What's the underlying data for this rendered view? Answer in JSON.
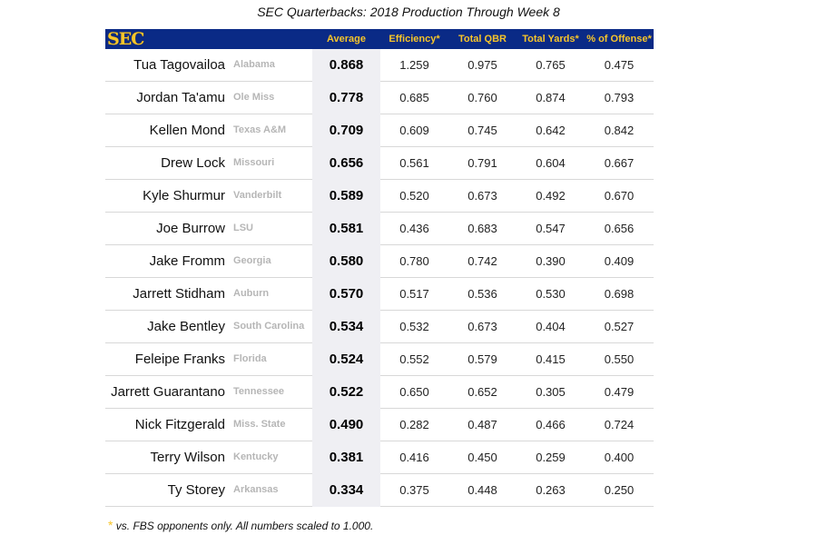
{
  "chart_data": {
    "type": "table",
    "title": "SEC Quarterbacks: 2018 Production Through Week 8",
    "logo_text": "SEC",
    "columns": [
      "Average",
      "Efficiency*",
      "Total QBR",
      "Total Yards*",
      "% of Offense*"
    ],
    "rows": [
      {
        "name": "Tua Tagovailoa",
        "school": "Alabama",
        "average": "0.868",
        "efficiency": "1.259",
        "total_qbr": "0.975",
        "total_yards": "0.765",
        "pct_offense": "0.475"
      },
      {
        "name": "Jordan Ta'amu",
        "school": "Ole Miss",
        "average": "0.778",
        "efficiency": "0.685",
        "total_qbr": "0.760",
        "total_yards": "0.874",
        "pct_offense": "0.793"
      },
      {
        "name": "Kellen Mond",
        "school": "Texas A&M",
        "average": "0.709",
        "efficiency": "0.609",
        "total_qbr": "0.745",
        "total_yards": "0.642",
        "pct_offense": "0.842"
      },
      {
        "name": "Drew Lock",
        "school": "Missouri",
        "average": "0.656",
        "efficiency": "0.561",
        "total_qbr": "0.791",
        "total_yards": "0.604",
        "pct_offense": "0.667"
      },
      {
        "name": "Kyle Shurmur",
        "school": "Vanderbilt",
        "average": "0.589",
        "efficiency": "0.520",
        "total_qbr": "0.673",
        "total_yards": "0.492",
        "pct_offense": "0.670"
      },
      {
        "name": "Joe Burrow",
        "school": "LSU",
        "average": "0.581",
        "efficiency": "0.436",
        "total_qbr": "0.683",
        "total_yards": "0.547",
        "pct_offense": "0.656"
      },
      {
        "name": "Jake Fromm",
        "school": "Georgia",
        "average": "0.580",
        "efficiency": "0.780",
        "total_qbr": "0.742",
        "total_yards": "0.390",
        "pct_offense": "0.409"
      },
      {
        "name": "Jarrett Stidham",
        "school": "Auburn",
        "average": "0.570",
        "efficiency": "0.517",
        "total_qbr": "0.536",
        "total_yards": "0.530",
        "pct_offense": "0.698"
      },
      {
        "name": "Jake Bentley",
        "school": "South Carolina",
        "average": "0.534",
        "efficiency": "0.532",
        "total_qbr": "0.673",
        "total_yards": "0.404",
        "pct_offense": "0.527"
      },
      {
        "name": "Feleipe Franks",
        "school": "Florida",
        "average": "0.524",
        "efficiency": "0.552",
        "total_qbr": "0.579",
        "total_yards": "0.415",
        "pct_offense": "0.550"
      },
      {
        "name": "Jarrett Guarantano",
        "school": "Tennessee",
        "average": "0.522",
        "efficiency": "0.650",
        "total_qbr": "0.652",
        "total_yards": "0.305",
        "pct_offense": "0.479"
      },
      {
        "name": "Nick Fitzgerald",
        "school": "Miss. State",
        "average": "0.490",
        "efficiency": "0.282",
        "total_qbr": "0.487",
        "total_yards": "0.466",
        "pct_offense": "0.724"
      },
      {
        "name": "Terry Wilson",
        "school": "Kentucky",
        "average": "0.381",
        "efficiency": "0.416",
        "total_qbr": "0.450",
        "total_yards": "0.259",
        "pct_offense": "0.400"
      },
      {
        "name": "Ty Storey",
        "school": "Arkansas",
        "average": "0.334",
        "efficiency": "0.375",
        "total_qbr": "0.448",
        "total_yards": "0.263",
        "pct_offense": "0.250"
      }
    ],
    "footnote_marker": "*",
    "footnote": "vs. FBS opponents only. All numbers scaled to 1.000."
  },
  "colors": {
    "header_bg": "#0a2a86",
    "header_text": "#f7c52a",
    "average_col_bg": "#efeff3",
    "school_text": "#b6b6b6"
  }
}
